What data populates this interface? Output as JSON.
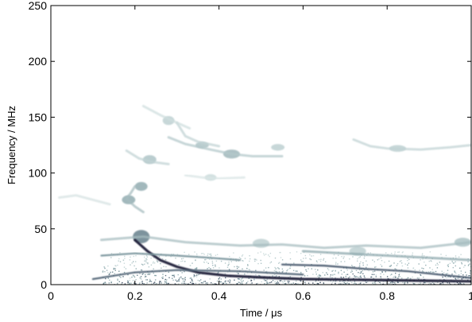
{
  "chart_data": {
    "type": "heatmap",
    "xlabel": "Time / μs",
    "ylabel": "Frequency / MHz",
    "xlim": [
      0,
      1
    ],
    "ylim": [
      0,
      250
    ],
    "x_ticks": [
      {
        "value": 0,
        "label": "0"
      },
      {
        "value": 0.2,
        "label": "0.2"
      },
      {
        "value": 0.4,
        "label": "0.4"
      },
      {
        "value": 0.6,
        "label": "0.6"
      },
      {
        "value": 0.8,
        "label": "0.8"
      },
      {
        "value": 1,
        "label": "1"
      }
    ],
    "y_ticks": [
      {
        "value": 0,
        "label": "0"
      },
      {
        "value": 50,
        "label": "50"
      },
      {
        "value": 100,
        "label": "100"
      },
      {
        "value": 150,
        "label": "150"
      },
      {
        "value": 200,
        "label": "200"
      },
      {
        "value": 250,
        "label": "250"
      }
    ],
    "grid": false,
    "colormap": [
      "#ffffff",
      "#cfdede",
      "#8aa6ab",
      "#4a5a6e",
      "#1c1c36"
    ],
    "ridges": [
      {
        "name": "main-ridge",
        "intensity": 0.95,
        "points": [
          [
            0.2,
            40
          ],
          [
            0.23,
            30
          ],
          [
            0.26,
            22
          ],
          [
            0.3,
            16
          ],
          [
            0.35,
            11
          ],
          [
            0.42,
            8
          ],
          [
            0.5,
            6.5
          ],
          [
            0.6,
            5
          ],
          [
            0.7,
            4.5
          ],
          [
            0.8,
            4
          ],
          [
            0.9,
            3.5
          ],
          [
            1.0,
            3
          ]
        ]
      },
      {
        "name": "low-trace-1",
        "intensity": 0.7,
        "points": [
          [
            0.1,
            5
          ],
          [
            0.2,
            11
          ],
          [
            0.3,
            13
          ],
          [
            0.45,
            12
          ],
          [
            0.55,
            10
          ],
          [
            0.6,
            9
          ]
        ]
      },
      {
        "name": "low-trace-2",
        "intensity": 0.75,
        "points": [
          [
            0.55,
            18
          ],
          [
            0.65,
            17
          ],
          [
            0.75,
            14
          ],
          [
            0.85,
            12
          ],
          [
            0.95,
            8
          ],
          [
            1.0,
            6
          ]
        ]
      },
      {
        "name": "low-trace-3",
        "intensity": 0.55,
        "points": [
          [
            0.12,
            26
          ],
          [
            0.2,
            28
          ],
          [
            0.3,
            26
          ],
          [
            0.38,
            24
          ],
          [
            0.45,
            22
          ]
        ]
      },
      {
        "name": "low-trace-4",
        "intensity": 0.5,
        "points": [
          [
            0.6,
            30
          ],
          [
            0.7,
            28
          ],
          [
            0.8,
            26
          ],
          [
            0.9,
            24
          ],
          [
            1.0,
            22
          ]
        ]
      },
      {
        "name": "band-40",
        "intensity": 0.4,
        "points": [
          [
            0.12,
            40
          ],
          [
            0.22,
            43
          ],
          [
            0.32,
            38
          ],
          [
            0.45,
            35
          ],
          [
            0.55,
            36
          ],
          [
            0.65,
            33
          ],
          [
            0.75,
            35
          ],
          [
            0.88,
            33
          ],
          [
            1.0,
            38
          ]
        ]
      },
      {
        "name": "ridge-60-90",
        "intensity": 0.4,
        "points": [
          [
            0.2,
            88
          ],
          [
            0.19,
            82
          ],
          [
            0.18,
            77
          ],
          [
            0.2,
            70
          ],
          [
            0.22,
            65
          ]
        ]
      },
      {
        "name": "ridge-115",
        "intensity": 0.35,
        "points": [
          [
            0.28,
            132
          ],
          [
            0.32,
            126
          ],
          [
            0.38,
            121
          ],
          [
            0.43,
            117
          ],
          [
            0.48,
            115
          ],
          [
            0.55,
            115
          ]
        ]
      },
      {
        "name": "ridge-125-branch",
        "intensity": 0.3,
        "points": [
          [
            0.3,
            145
          ],
          [
            0.32,
            133
          ],
          [
            0.35,
            128
          ],
          [
            0.4,
            124
          ]
        ]
      },
      {
        "name": "ridge-120-right",
        "intensity": 0.3,
        "points": [
          [
            0.72,
            130
          ],
          [
            0.76,
            124
          ],
          [
            0.8,
            122
          ],
          [
            0.88,
            121
          ],
          [
            0.95,
            123
          ],
          [
            1.0,
            125
          ]
        ]
      },
      {
        "name": "ridge-110-left",
        "intensity": 0.3,
        "points": [
          [
            0.18,
            120
          ],
          [
            0.21,
            113
          ],
          [
            0.24,
            110
          ],
          [
            0.28,
            108
          ]
        ]
      },
      {
        "name": "ridge-145",
        "intensity": 0.25,
        "points": [
          [
            0.22,
            160
          ],
          [
            0.26,
            152
          ],
          [
            0.3,
            145
          ],
          [
            0.33,
            140
          ]
        ]
      },
      {
        "name": "ridge-78-left",
        "intensity": 0.22,
        "points": [
          [
            0.02,
            78
          ],
          [
            0.06,
            80
          ],
          [
            0.1,
            76
          ],
          [
            0.14,
            72
          ]
        ]
      },
      {
        "name": "ridge-95",
        "intensity": 0.2,
        "points": [
          [
            0.32,
            98
          ],
          [
            0.36,
            96
          ],
          [
            0.4,
            95
          ],
          [
            0.46,
            96
          ]
        ]
      }
    ],
    "blobs": [
      {
        "x": 0.215,
        "y": 43,
        "rx": 0.02,
        "ry": 6,
        "intensity": 0.6
      },
      {
        "x": 0.215,
        "y": 88,
        "rx": 0.015,
        "ry": 4,
        "intensity": 0.45
      },
      {
        "x": 0.185,
        "y": 76,
        "rx": 0.016,
        "ry": 4,
        "intensity": 0.45
      },
      {
        "x": 0.235,
        "y": 112,
        "rx": 0.016,
        "ry": 4,
        "intensity": 0.35
      },
      {
        "x": 0.28,
        "y": 147,
        "rx": 0.014,
        "ry": 4,
        "intensity": 0.3
      },
      {
        "x": 0.43,
        "y": 117,
        "rx": 0.02,
        "ry": 4,
        "intensity": 0.4
      },
      {
        "x": 0.54,
        "y": 123,
        "rx": 0.016,
        "ry": 3,
        "intensity": 0.3
      },
      {
        "x": 0.825,
        "y": 122,
        "rx": 0.02,
        "ry": 3,
        "intensity": 0.3
      },
      {
        "x": 0.36,
        "y": 125,
        "rx": 0.016,
        "ry": 3,
        "intensity": 0.35
      },
      {
        "x": 0.38,
        "y": 96,
        "rx": 0.014,
        "ry": 3,
        "intensity": 0.25
      },
      {
        "x": 0.5,
        "y": 37,
        "rx": 0.02,
        "ry": 4,
        "intensity": 0.3
      },
      {
        "x": 0.98,
        "y": 38,
        "rx": 0.02,
        "ry": 4,
        "intensity": 0.35
      },
      {
        "x": 0.73,
        "y": 30,
        "rx": 0.02,
        "ry": 4,
        "intensity": 0.3
      }
    ]
  }
}
